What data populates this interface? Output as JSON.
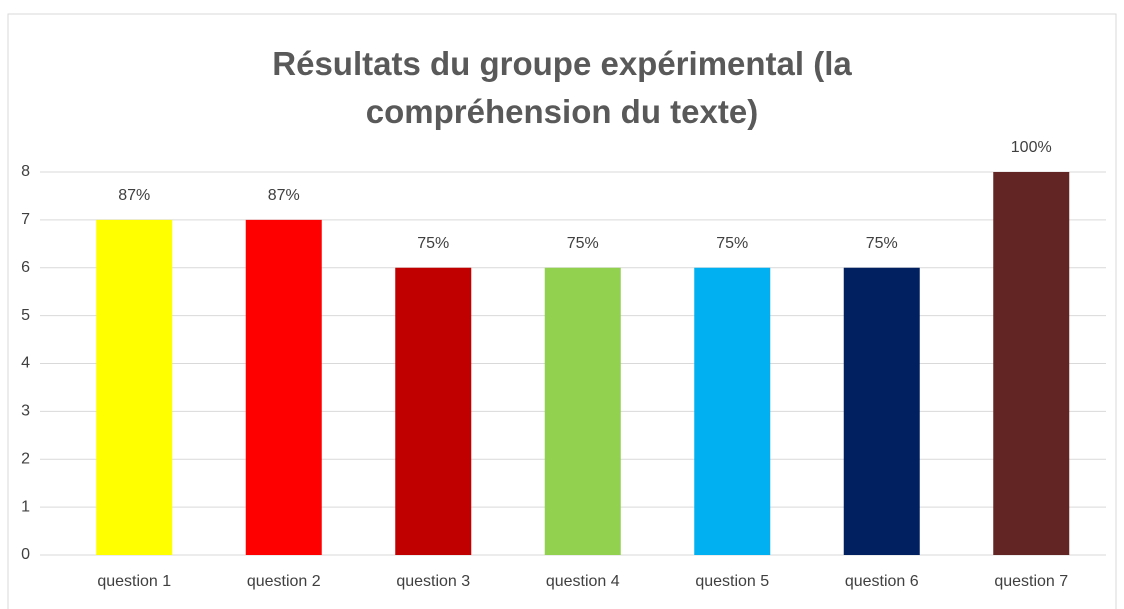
{
  "chart_data": {
    "type": "bar",
    "title": "Résultats du groupe expérimental (la compréhension du texte)",
    "categories": [
      "question 1",
      "question 2",
      "question 3",
      "question 4",
      "question 5",
      "question 6",
      "question 7"
    ],
    "values": [
      7,
      7,
      6,
      6,
      6,
      6,
      8
    ],
    "value_labels": [
      "87%",
      "87%",
      "75%",
      "75%",
      "75%",
      "75%",
      "100%"
    ],
    "colors": [
      "#ffff00",
      "#ff0000",
      "#c00000",
      "#92d050",
      "#00b0f0",
      "#002060",
      "#632523"
    ],
    "ylim": [
      0,
      8
    ],
    "yticks": [
      0,
      1,
      2,
      3,
      4,
      5,
      6,
      7,
      8
    ],
    "grid": true
  }
}
